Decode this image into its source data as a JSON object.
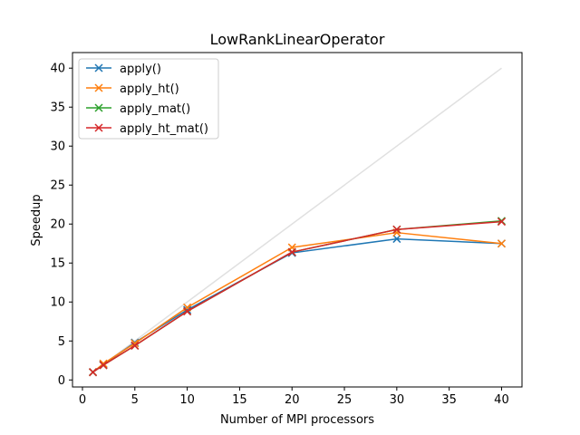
{
  "chart_data": {
    "type": "line",
    "title": "LowRankLinearOperator",
    "xlabel": "Number of MPI processors",
    "ylabel": "Speedup",
    "xlim": [
      -0.95,
      41.95
    ],
    "ylim": [
      -0.9,
      42.0
    ],
    "xticks": [
      0,
      5,
      10,
      15,
      20,
      25,
      30,
      35,
      40
    ],
    "yticks": [
      0,
      5,
      10,
      15,
      20,
      25,
      30,
      35,
      40
    ],
    "grid": false,
    "legend_position": "top-left",
    "reference_line": {
      "x": [
        1,
        40
      ],
      "y": [
        1,
        40
      ],
      "color": "#e0e0e0"
    },
    "series": [
      {
        "name": "apply()",
        "color": "#1f77b4",
        "marker": "x",
        "x": [
          1,
          2,
          5,
          10,
          20,
          30,
          40
        ],
        "y": [
          1.0,
          2.0,
          4.8,
          9.0,
          16.3,
          18.1,
          17.5
        ]
      },
      {
        "name": "apply_ht()",
        "color": "#ff7f0e",
        "marker": "x",
        "x": [
          1,
          2,
          5,
          10,
          20,
          30,
          40
        ],
        "y": [
          1.0,
          2.1,
          4.7,
          9.3,
          17.0,
          18.9,
          17.5
        ]
      },
      {
        "name": "apply_mat()",
        "color": "#2ca02c",
        "marker": "x",
        "x": [
          1,
          2,
          5,
          10,
          20,
          30,
          40
        ],
        "y": [
          1.0,
          1.9,
          4.4,
          8.8,
          16.4,
          19.3,
          20.4
        ]
      },
      {
        "name": "apply_ht_mat()",
        "color": "#d62728",
        "marker": "x",
        "x": [
          1,
          2,
          5,
          10,
          20,
          30,
          40
        ],
        "y": [
          1.0,
          1.9,
          4.4,
          8.8,
          16.4,
          19.3,
          20.3
        ]
      }
    ]
  }
}
